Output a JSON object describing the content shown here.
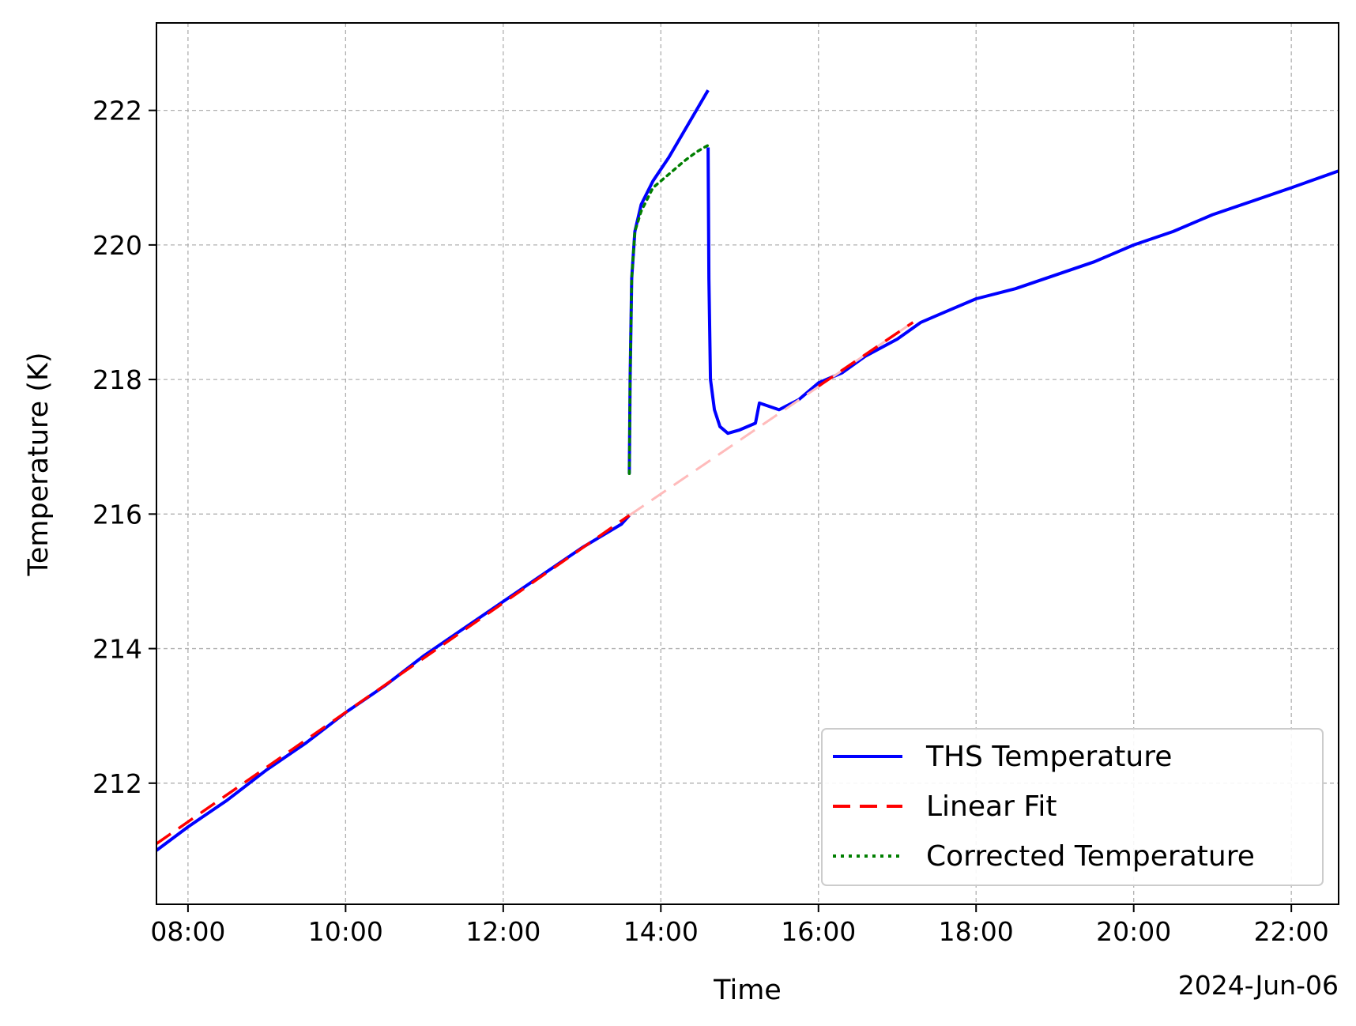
{
  "chart_data": {
    "type": "line",
    "title": "",
    "xlabel": "Time",
    "ylabel": "Temperature (K)",
    "date_label": "2024-Jun-06",
    "x_unit": "hours (time of day, 2024-06-06)",
    "xlim": [
      7.6,
      22.6
    ],
    "ylim": [
      210.2,
      223.3
    ],
    "x_ticks": [
      {
        "value": 8,
        "label": "08:00"
      },
      {
        "value": 10,
        "label": "10:00"
      },
      {
        "value": 12,
        "label": "12:00"
      },
      {
        "value": 14,
        "label": "14:00"
      },
      {
        "value": 16,
        "label": "16:00"
      },
      {
        "value": 18,
        "label": "18:00"
      },
      {
        "value": 20,
        "label": "20:00"
      },
      {
        "value": 22,
        "label": "22:00"
      }
    ],
    "y_ticks": [
      {
        "value": 212,
        "label": "212"
      },
      {
        "value": 214,
        "label": "214"
      },
      {
        "value": 216,
        "label": "216"
      },
      {
        "value": 218,
        "label": "218"
      },
      {
        "value": 220,
        "label": "220"
      },
      {
        "value": 222,
        "label": "222"
      }
    ],
    "grid": true,
    "legend_position": "bottom-right",
    "series": [
      {
        "name": "THS Temperature",
        "color": "#0000ff",
        "style": "solid",
        "segments": [
          [
            [
              7.6,
              211.0
            ],
            [
              8.0,
              211.35
            ],
            [
              8.5,
              211.75
            ],
            [
              9.0,
              212.2
            ],
            [
              9.5,
              212.6
            ],
            [
              10.0,
              213.05
            ],
            [
              10.5,
              213.45
            ],
            [
              11.0,
              213.9
            ],
            [
              11.5,
              214.3
            ],
            [
              12.0,
              214.7
            ],
            [
              12.5,
              215.1
            ],
            [
              13.0,
              215.5
            ],
            [
              13.5,
              215.85
            ],
            [
              13.6,
              215.98
            ]
          ],
          [
            [
              13.6,
              216.6
            ],
            [
              13.61,
              218.0
            ],
            [
              13.63,
              219.5
            ],
            [
              13.67,
              220.2
            ],
            [
              13.75,
              220.6
            ],
            [
              13.9,
              220.95
            ],
            [
              14.1,
              221.3
            ],
            [
              14.3,
              221.7
            ],
            [
              14.45,
              222.0
            ],
            [
              14.6,
              222.3
            ]
          ],
          [
            [
              14.6,
              221.45
            ],
            [
              14.61,
              219.5
            ],
            [
              14.63,
              218.0
            ],
            [
              14.68,
              217.55
            ],
            [
              14.75,
              217.3
            ],
            [
              14.85,
              217.2
            ],
            [
              15.0,
              217.25
            ],
            [
              15.2,
              217.35
            ],
            [
              15.25,
              217.65
            ],
            [
              15.5,
              217.55
            ],
            [
              15.75,
              217.7
            ],
            [
              16.0,
              217.95
            ],
            [
              16.3,
              218.1
            ],
            [
              16.6,
              218.35
            ],
            [
              17.0,
              218.6
            ],
            [
              17.3,
              218.85
            ],
            [
              17.5,
              218.95
            ],
            [
              17.7,
              219.05
            ],
            [
              18.0,
              219.2
            ],
            [
              18.5,
              219.35
            ],
            [
              19.0,
              219.55
            ],
            [
              19.5,
              219.75
            ],
            [
              20.0,
              220.0
            ],
            [
              20.5,
              220.2
            ],
            [
              21.0,
              220.45
            ],
            [
              21.5,
              220.65
            ],
            [
              22.0,
              220.85
            ],
            [
              22.6,
              221.1
            ]
          ]
        ]
      },
      {
        "name": "Linear Fit",
        "color": "#ff0000",
        "style": "dashed",
        "segments": [
          [
            [
              7.6,
              211.1
            ],
            [
              13.6,
              215.98
            ]
          ],
          [
            [
              16.0,
              217.9
            ],
            [
              17.2,
              218.85
            ]
          ]
        ],
        "extrapolation": {
          "color": "#ffbbbb",
          "points": [
            [
              13.6,
              215.98
            ],
            [
              17.2,
              218.85
            ]
          ]
        }
      },
      {
        "name": "Corrected Temperature",
        "color": "#007f00",
        "style": "dotted",
        "segments": [
          [
            [
              13.6,
              216.6
            ],
            [
              13.61,
              218.0
            ],
            [
              13.63,
              219.5
            ],
            [
              13.67,
              220.2
            ],
            [
              13.75,
              220.5
            ],
            [
              13.9,
              220.85
            ],
            [
              14.1,
              221.05
            ],
            [
              14.3,
              221.25
            ],
            [
              14.45,
              221.38
            ],
            [
              14.55,
              221.45
            ],
            [
              14.6,
              221.48
            ]
          ]
        ]
      }
    ]
  },
  "legend": {
    "items": [
      {
        "label": "THS Temperature",
        "color": "#0000ff",
        "style": "solid"
      },
      {
        "label": "Linear Fit",
        "color": "#ff0000",
        "style": "dashed"
      },
      {
        "label": "Corrected Temperature",
        "color": "#007f00",
        "style": "dotted"
      }
    ]
  }
}
